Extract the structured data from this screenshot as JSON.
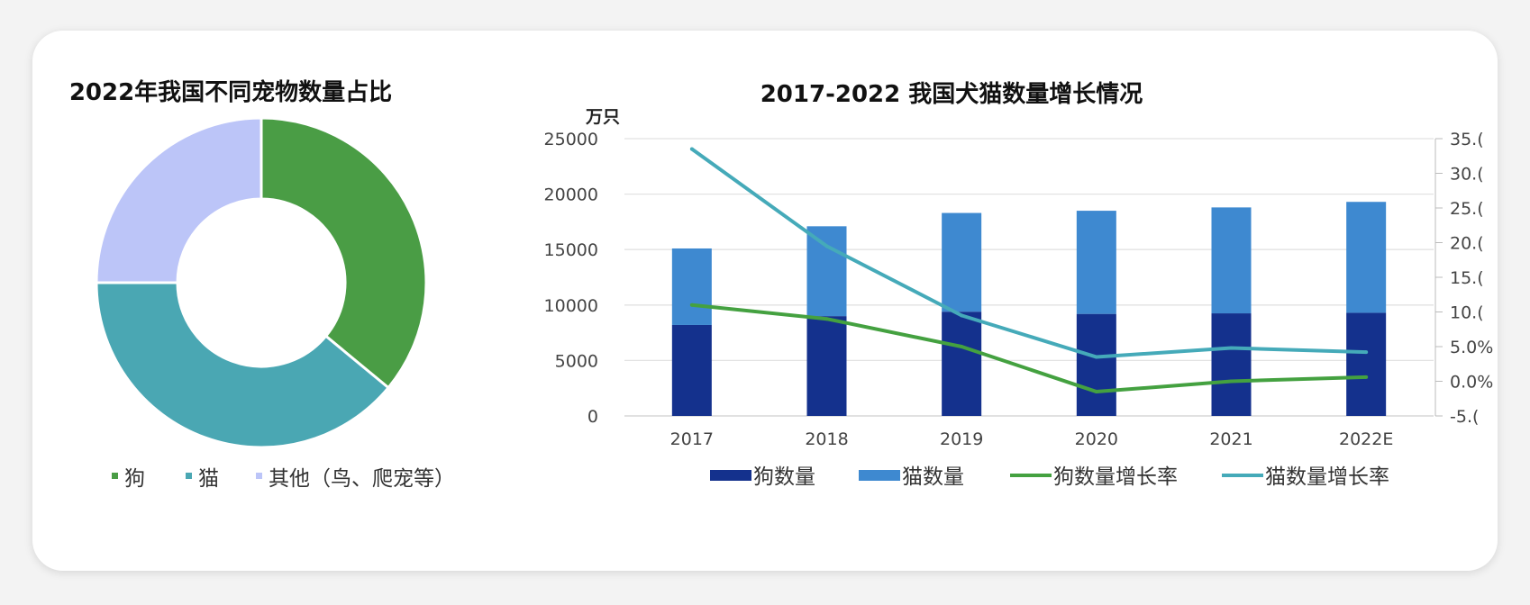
{
  "chart_data": [
    {
      "type": "pie",
      "title": "2022年我国不同宠物数量占比",
      "donut": true,
      "slices": [
        {
          "label": "狗",
          "value": 36,
          "color": "#4a9d45"
        },
        {
          "label": "猫",
          "value": 39,
          "color": "#4aa7b3"
        },
        {
          "label": "其他（鸟、爬宠等）",
          "value": 25,
          "color": "#bcc5f8"
        }
      ],
      "legend_position": "bottom"
    },
    {
      "type": "bar",
      "stacked": true,
      "title": "2017-2022 我国犬猫数量增长情况",
      "ylabel": "万只",
      "categories": [
        "2017",
        "2018",
        "2019",
        "2020",
        "2021",
        "2022E"
      ],
      "ylim": [
        0,
        25000
      ],
      "yticks": [
        "25000",
        "20000",
        "15000",
        "10000",
        "5000",
        "0"
      ],
      "y2lim": [
        -5,
        35
      ],
      "y2ticks": [
        "35.(",
        "30.(",
        "25.(",
        "20.(",
        "15.(",
        "10.(",
        "5.0%",
        "0.0%",
        "-5.("
      ],
      "series": [
        {
          "name": "狗数量",
          "kind": "bar",
          "color": "#14318d",
          "values": [
            8200,
            9000,
            9400,
            9200,
            9250,
            9300
          ]
        },
        {
          "name": "猫数量",
          "kind": "bar",
          "color": "#3e89d0",
          "values": [
            6900,
            8100,
            8900,
            9300,
            9550,
            10000
          ]
        },
        {
          "name": "狗数量增长率",
          "kind": "line",
          "axis": "right",
          "color": "#44a140",
          "values": [
            11.0,
            9.0,
            5.0,
            -1.5,
            0.0,
            0.6
          ]
        },
        {
          "name": "猫数量增长率",
          "kind": "line",
          "axis": "right",
          "color": "#45aab9",
          "values": [
            33.5,
            19.5,
            9.5,
            3.5,
            4.8,
            4.2
          ]
        }
      ],
      "grid": true,
      "legend_position": "bottom"
    }
  ]
}
